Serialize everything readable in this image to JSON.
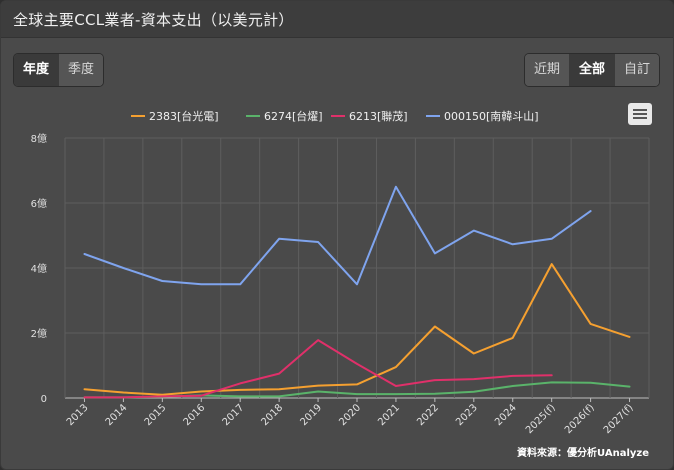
{
  "header": {
    "title": "全球主要CCL業者-資本支出（以美元計）"
  },
  "period_toggle": {
    "annual": "年度",
    "quarterly": "季度",
    "active": "annual"
  },
  "range_toggle": {
    "recent": "近期",
    "all": "全部",
    "custom": "自訂",
    "active": "all"
  },
  "menu": {
    "icon": "hamburger-menu-icon"
  },
  "source_note": "資料來源：優分析UAnalyze",
  "colors": {
    "background": "#4a4a4a",
    "grid": "#5e5e5e",
    "axis": "#bdbdbd"
  },
  "chart_data": {
    "type": "line",
    "categories": [
      "2013",
      "2014",
      "2015",
      "2016",
      "2017",
      "2018",
      "2019",
      "2020",
      "2021",
      "2022",
      "2023",
      "2024",
      "2025(f)",
      "2026(f)",
      "2027(f)"
    ],
    "y_unit": "億",
    "ylim": [
      0,
      8
    ],
    "yticks": [
      {
        "value": 0,
        "label": "0"
      },
      {
        "value": 2,
        "label": "2億"
      },
      {
        "value": 4,
        "label": "4億"
      },
      {
        "value": 6,
        "label": "6億"
      },
      {
        "value": 8,
        "label": "8億"
      }
    ],
    "grid": true,
    "legend_position": "top",
    "series": [
      {
        "name": "2383[台光電]",
        "color": "#f5a030",
        "values": [
          0.27,
          0.17,
          0.1,
          0.2,
          0.25,
          0.27,
          0.38,
          0.42,
          0.95,
          2.2,
          1.37,
          1.85,
          4.12,
          2.28,
          1.88
        ]
      },
      {
        "name": "6274[台燿]",
        "color": "#5ab36a",
        "values": [
          0.02,
          0.02,
          0.04,
          0.08,
          0.05,
          0.05,
          0.2,
          0.12,
          0.12,
          0.13,
          0.19,
          0.37,
          0.48,
          0.47,
          0.35
        ]
      },
      {
        "name": "6213[聯茂]",
        "color": "#e0306a",
        "values": [
          0.02,
          0.02,
          0.05,
          0.07,
          0.45,
          0.75,
          1.78,
          1.05,
          0.37,
          0.55,
          0.58,
          0.68,
          0.7,
          null,
          null
        ]
      },
      {
        "name": "000150[南韓斗山]",
        "color": "#7fa4ee",
        "values": [
          4.43,
          4.0,
          3.6,
          3.5,
          3.5,
          4.9,
          4.8,
          3.5,
          6.5,
          4.45,
          5.15,
          4.73,
          4.9,
          5.75,
          null
        ]
      }
    ]
  }
}
